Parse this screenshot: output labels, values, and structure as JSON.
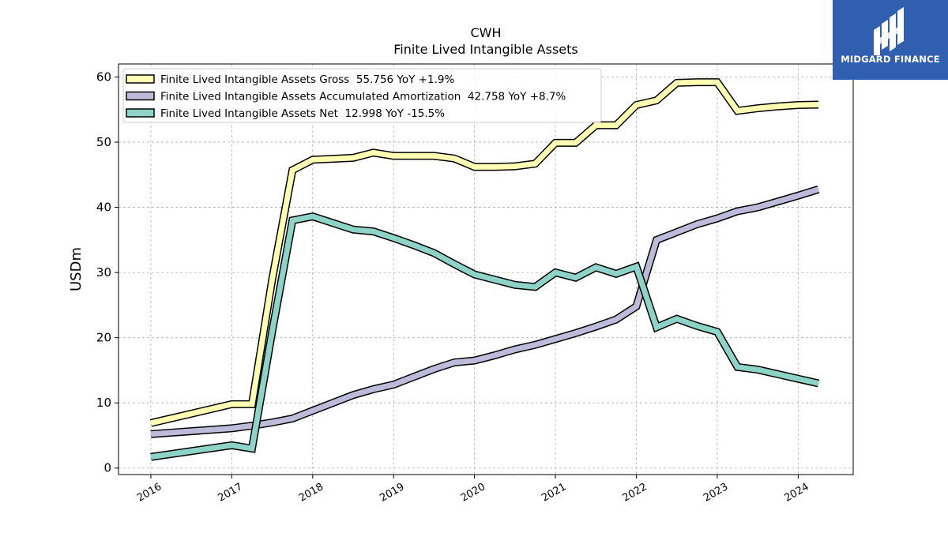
{
  "chart_data": {
    "type": "line",
    "title": "CWH",
    "subtitle": "Finite Lived Intangible Assets",
    "ylabel": "USDm",
    "xlabel": "",
    "ylim": [
      -1,
      62
    ],
    "xlim": [
      2015.6,
      2024.68
    ],
    "yticks": [
      0,
      10,
      20,
      30,
      40,
      50,
      60
    ],
    "xticks": [
      2016,
      2017,
      2018,
      2019,
      2020,
      2021,
      2022,
      2023,
      2024
    ],
    "grid": true,
    "legend_position": "top-left",
    "series": [
      {
        "name": "Finite Lived Intangible Assets Gross  55.756 YoY +1.9%",
        "color": "#ffffb3",
        "points": [
          [
            2016.0,
            6.9
          ],
          [
            2017.0,
            9.8
          ],
          [
            2017.25,
            9.8
          ],
          [
            2017.5,
            29.0
          ],
          [
            2017.75,
            45.7
          ],
          [
            2018.0,
            47.3
          ],
          [
            2018.5,
            47.6
          ],
          [
            2018.75,
            48.4
          ],
          [
            2019.0,
            47.9
          ],
          [
            2019.5,
            47.9
          ],
          [
            2019.75,
            47.5
          ],
          [
            2020.0,
            46.2
          ],
          [
            2020.25,
            46.2
          ],
          [
            2020.5,
            46.3
          ],
          [
            2020.75,
            46.7
          ],
          [
            2021.0,
            49.9
          ],
          [
            2021.25,
            49.9
          ],
          [
            2021.5,
            52.6
          ],
          [
            2021.75,
            52.6
          ],
          [
            2022.0,
            55.7
          ],
          [
            2022.25,
            56.4
          ],
          [
            2022.5,
            59.1
          ],
          [
            2022.75,
            59.2
          ],
          [
            2023.0,
            59.2
          ],
          [
            2023.25,
            54.8
          ],
          [
            2023.5,
            55.2
          ],
          [
            2023.75,
            55.5
          ],
          [
            2024.0,
            55.7
          ],
          [
            2024.25,
            55.756
          ]
        ]
      },
      {
        "name": "Finite Lived Intangible Assets Accumulated Amortization  42.758 YoY +8.7%",
        "color": "#bebada",
        "points": [
          [
            2016.0,
            5.2
          ],
          [
            2017.0,
            6.1
          ],
          [
            2017.25,
            6.5
          ],
          [
            2017.5,
            7.0
          ],
          [
            2017.75,
            7.6
          ],
          [
            2018.0,
            8.8
          ],
          [
            2018.25,
            10.0
          ],
          [
            2018.5,
            11.2
          ],
          [
            2018.75,
            12.1
          ],
          [
            2019.0,
            12.8
          ],
          [
            2019.25,
            14.0
          ],
          [
            2019.5,
            15.2
          ],
          [
            2019.75,
            16.2
          ],
          [
            2020.0,
            16.5
          ],
          [
            2020.25,
            17.3
          ],
          [
            2020.5,
            18.2
          ],
          [
            2020.75,
            18.9
          ],
          [
            2021.0,
            19.8
          ],
          [
            2021.25,
            20.7
          ],
          [
            2021.5,
            21.7
          ],
          [
            2021.75,
            22.8
          ],
          [
            2022.0,
            24.8
          ],
          [
            2022.25,
            35.0
          ],
          [
            2022.5,
            36.2
          ],
          [
            2022.75,
            37.4
          ],
          [
            2023.0,
            38.3
          ],
          [
            2023.25,
            39.4
          ],
          [
            2023.5,
            40.0
          ],
          [
            2023.75,
            40.9
          ],
          [
            2024.0,
            41.8
          ],
          [
            2024.25,
            42.758
          ]
        ]
      },
      {
        "name": "Finite Lived Intangible Assets Net  12.998 YoY -15.5%",
        "color": "#8dd3c7",
        "points": [
          [
            2016.0,
            1.7
          ],
          [
            2017.0,
            3.5
          ],
          [
            2017.25,
            3.0
          ],
          [
            2017.5,
            21.0
          ],
          [
            2017.75,
            38.0
          ],
          [
            2018.0,
            38.6
          ],
          [
            2018.25,
            37.6
          ],
          [
            2018.5,
            36.6
          ],
          [
            2018.75,
            36.3
          ],
          [
            2019.0,
            35.3
          ],
          [
            2019.25,
            34.2
          ],
          [
            2019.5,
            33.0
          ],
          [
            2019.75,
            31.3
          ],
          [
            2020.0,
            29.7
          ],
          [
            2020.25,
            28.9
          ],
          [
            2020.5,
            28.1
          ],
          [
            2020.75,
            27.8
          ],
          [
            2021.0,
            30.0
          ],
          [
            2021.25,
            29.2
          ],
          [
            2021.5,
            30.8
          ],
          [
            2021.75,
            29.8
          ],
          [
            2022.0,
            30.9
          ],
          [
            2022.25,
            21.6
          ],
          [
            2022.5,
            22.9
          ],
          [
            2022.75,
            21.8
          ],
          [
            2023.0,
            20.9
          ],
          [
            2023.25,
            15.5
          ],
          [
            2023.5,
            15.1
          ],
          [
            2023.75,
            14.4
          ],
          [
            2024.0,
            13.7
          ],
          [
            2024.25,
            12.998
          ]
        ]
      }
    ]
  },
  "logo": {
    "text": "MIDGARD FINANCE",
    "color": "#2f5fae"
  }
}
